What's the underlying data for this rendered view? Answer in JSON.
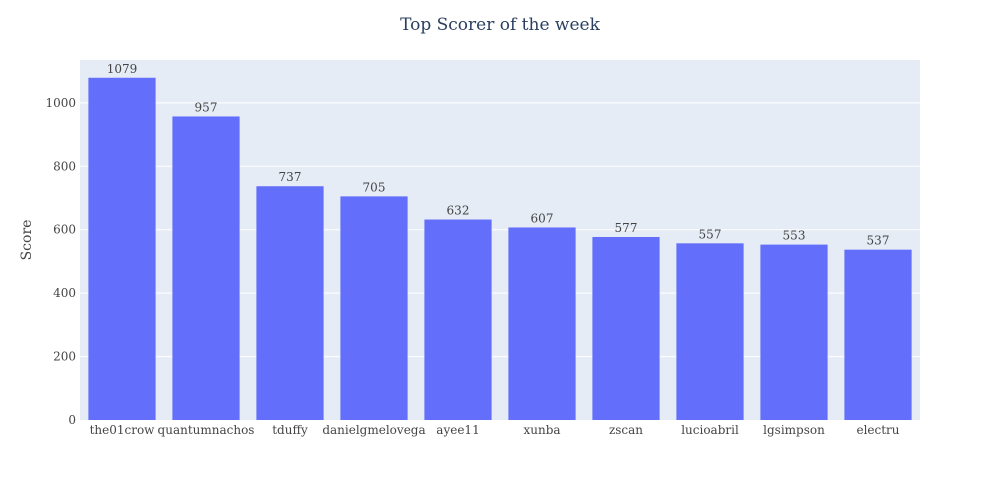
{
  "chart_data": {
    "type": "bar",
    "title": "Top Scorer of the week",
    "xlabel": "",
    "ylabel": "Score",
    "categories": [
      "the01crow",
      "quantumnachos",
      "tduffy",
      "danielgmelovega",
      "ayee11",
      "xunba",
      "zscan",
      "lucioabril",
      "lgsimpson",
      "electru"
    ],
    "values": [
      1079,
      957,
      737,
      705,
      632,
      607,
      577,
      557,
      553,
      537
    ],
    "ylim": [
      0,
      1135
    ],
    "yticks": [
      0,
      200,
      400,
      600,
      800,
      1000
    ],
    "grid": true,
    "legend": "none",
    "colors": {
      "bar": "#636efa",
      "plot_bg": "#e5ecf6",
      "grid": "#ffffff",
      "title": "#2a3f5f",
      "text": "#444444"
    }
  }
}
